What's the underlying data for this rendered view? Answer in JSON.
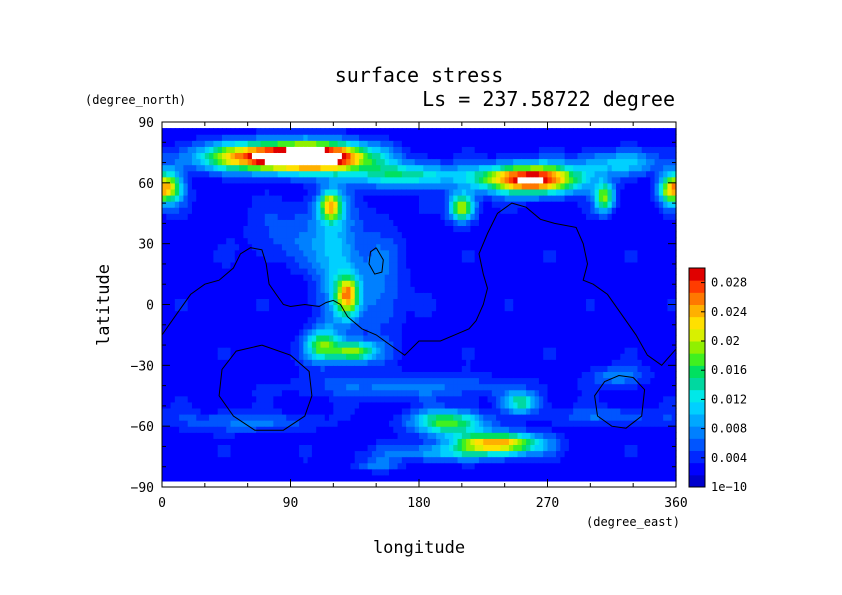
{
  "chart_data": {
    "type": "heatmap",
    "title": "surface stress",
    "subtitle": "Ls = 237.58722 degree",
    "xlabel": "longitude",
    "ylabel": "latitude",
    "xunit": "(degree_east)",
    "yunit": "(degree_north)",
    "xlim": [
      0,
      360
    ],
    "ylim": [
      -90,
      90
    ],
    "xticks": [
      "0",
      "90",
      "180",
      "270",
      "360"
    ],
    "yticks": [
      "90",
      "60",
      "30",
      "0",
      "−30",
      "−60",
      "−90"
    ],
    "xtick_values": [
      0,
      90,
      180,
      270,
      360
    ],
    "ytick_values": [
      90,
      60,
      30,
      0,
      -30,
      -60,
      -90
    ],
    "colorbar": {
      "min": 0,
      "max": 0.03,
      "tick_values": [
        0,
        0.004,
        0.008,
        0.012,
        0.016,
        0.02,
        0.024,
        0.028
      ],
      "tick_labels": [
        "1e−10",
        "0.004",
        "0.008",
        "0.012",
        "0.016",
        "0.02",
        "0.024",
        "0.028"
      ],
      "colors": [
        "#0000cd",
        "#0000ff",
        "#0028ff",
        "#0055ff",
        "#0080ff",
        "#00a8ff",
        "#00d0ff",
        "#00e8e8",
        "#00d8a0",
        "#00e060",
        "#40f020",
        "#90f000",
        "#d8f000",
        "#ffe000",
        "#ffb000",
        "#ff7800",
        "#ff3c00",
        "#e00000"
      ]
    },
    "grid": false,
    "field": {
      "background": 0.002,
      "features": [
        {
          "lon": 70,
          "lat": 73,
          "rlon": 42,
          "rlat": 7,
          "value": 0.026
        },
        {
          "lon": 115,
          "lat": 73,
          "rlon": 35,
          "rlat": 7,
          "value": 0.026
        },
        {
          "lon": 258,
          "lat": 62,
          "rlon": 35,
          "rlat": 7,
          "value": 0.03
        },
        {
          "lon": 170,
          "lat": 64,
          "rlon": 40,
          "rlat": 6,
          "value": 0.012
        },
        {
          "lon": 320,
          "lat": 70,
          "rlon": 30,
          "rlat": 6,
          "value": 0.008
        },
        {
          "lon": 5,
          "lat": 58,
          "rlon": 10,
          "rlat": 8,
          "value": 0.018
        },
        {
          "lon": 355,
          "lat": 57,
          "rlon": 8,
          "rlat": 7,
          "value": 0.014
        },
        {
          "lon": 118,
          "lat": 49,
          "rlon": 8,
          "rlat": 7,
          "value": 0.018
        },
        {
          "lon": 210,
          "lat": 48,
          "rlon": 9,
          "rlat": 7,
          "value": 0.018
        },
        {
          "lon": 310,
          "lat": 53,
          "rlon": 7,
          "rlat": 7,
          "value": 0.016
        },
        {
          "lon": 130,
          "lat": 5,
          "rlon": 8,
          "rlat": 10,
          "value": 0.018
        },
        {
          "lon": 112,
          "lat": -20,
          "rlon": 12,
          "rlat": 8,
          "value": 0.014
        },
        {
          "lon": 135,
          "lat": -23,
          "rlon": 15,
          "rlat": 5,
          "value": 0.016
        },
        {
          "lon": 120,
          "lat": 20,
          "rlon": 14,
          "rlat": 35,
          "value": 0.007
        },
        {
          "lon": 150,
          "lat": 10,
          "rlon": 20,
          "rlat": 30,
          "value": 0.005
        },
        {
          "lon": 95,
          "lat": 35,
          "rlon": 35,
          "rlat": 15,
          "value": 0.004
        },
        {
          "lon": 60,
          "lat": -58,
          "rlon": 50,
          "rlat": 5,
          "value": 0.005
        },
        {
          "lon": 310,
          "lat": -55,
          "rlon": 45,
          "rlat": 5,
          "value": 0.004
        },
        {
          "lon": 200,
          "lat": -58,
          "rlon": 25,
          "rlat": 6,
          "value": 0.016
        },
        {
          "lon": 235,
          "lat": -68,
          "rlon": 30,
          "rlat": 5,
          "value": 0.022
        },
        {
          "lon": 252,
          "lat": -48,
          "rlon": 12,
          "rlat": 5,
          "value": 0.012
        },
        {
          "lon": 175,
          "lat": -40,
          "rlon": 80,
          "rlat": 6,
          "value": 0.005
        },
        {
          "lon": 200,
          "lat": -73,
          "rlon": 50,
          "rlat": 4,
          "value": 0.007
        },
        {
          "lon": 150,
          "lat": -79,
          "rlon": 15,
          "rlat": 3,
          "value": 0.005
        },
        {
          "lon": 320,
          "lat": -35,
          "rlon": 20,
          "rlat": 5,
          "value": 0.006
        }
      ]
    },
    "contours": [
      [
        [
          0,
          -15
        ],
        [
          10,
          -5
        ],
        [
          20,
          5
        ],
        [
          30,
          10
        ],
        [
          40,
          12
        ],
        [
          50,
          18
        ],
        [
          55,
          25
        ],
        [
          62,
          28
        ],
        [
          70,
          27
        ],
        [
          73,
          20
        ],
        [
          75,
          10
        ],
        [
          80,
          5
        ],
        [
          85,
          0
        ],
        [
          90,
          -1
        ],
        [
          100,
          0
        ],
        [
          110,
          -1
        ],
        [
          115,
          1
        ],
        [
          120,
          2
        ],
        [
          125,
          0
        ],
        [
          130,
          -6
        ],
        [
          140,
          -12
        ],
        [
          150,
          -15
        ],
        [
          160,
          -20
        ],
        [
          170,
          -25
        ],
        [
          180,
          -18
        ],
        [
          195,
          -18
        ],
        [
          205,
          -15
        ],
        [
          215,
          -12
        ],
        [
          220,
          -8
        ],
        [
          225,
          0
        ],
        [
          228,
          8
        ],
        [
          225,
          15
        ],
        [
          222,
          25
        ],
        [
          228,
          35
        ],
        [
          235,
          45
        ],
        [
          245,
          50
        ],
        [
          255,
          48
        ],
        [
          265,
          42
        ],
        [
          275,
          40
        ],
        [
          290,
          38
        ],
        [
          295,
          30
        ],
        [
          298,
          20
        ],
        [
          295,
          12
        ],
        [
          302,
          10
        ],
        [
          312,
          5
        ],
        [
          322,
          -5
        ],
        [
          332,
          -15
        ],
        [
          340,
          -25
        ],
        [
          350,
          -30
        ],
        [
          360,
          -22
        ]
      ],
      [
        [
          150,
          28
        ],
        [
          155,
          22
        ],
        [
          154,
          16
        ],
        [
          149,
          15
        ],
        [
          145,
          20
        ],
        [
          146,
          26
        ],
        [
          150,
          28
        ]
      ],
      [
        [
          70,
          -20
        ],
        [
          90,
          -25
        ],
        [
          103,
          -33
        ],
        [
          105,
          -45
        ],
        [
          100,
          -55
        ],
        [
          85,
          -62
        ],
        [
          65,
          -62
        ],
        [
          50,
          -55
        ],
        [
          40,
          -45
        ],
        [
          42,
          -32
        ],
        [
          52,
          -23
        ],
        [
          70,
          -20
        ]
      ],
      [
        [
          330,
          -36
        ],
        [
          338,
          -42
        ],
        [
          336,
          -55
        ],
        [
          325,
          -61
        ],
        [
          315,
          -60
        ],
        [
          305,
          -55
        ],
        [
          303,
          -45
        ],
        [
          310,
          -38
        ],
        [
          320,
          -35
        ],
        [
          330,
          -36
        ]
      ]
    ]
  }
}
